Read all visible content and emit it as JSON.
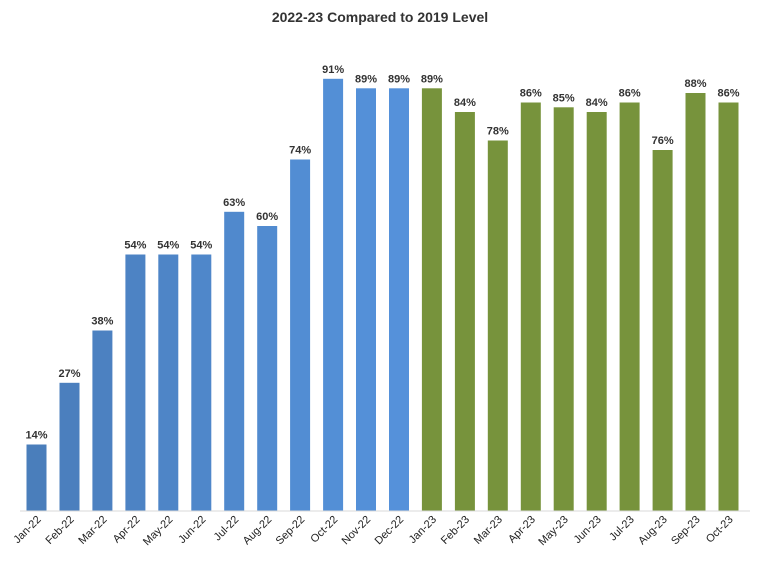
{
  "chart_data": {
    "type": "bar",
    "title": "2022-23 Compared to 2019 Level",
    "xlabel": "",
    "ylabel": "",
    "ylim": [
      0,
      100
    ],
    "grid": false,
    "legend": "none",
    "categories": [
      "Jan-22",
      "Feb-22",
      "Mar-22",
      "Apr-22",
      "May-22",
      "Jun-22",
      "Jul-22",
      "Aug-22",
      "Sep-22",
      "Oct-22",
      "Nov-22",
      "Dec-22",
      "Jan-23",
      "Feb-23",
      "Mar-23",
      "Apr-23",
      "May-23",
      "Jun-23",
      "Jul-23",
      "Aug-23",
      "Sep-23",
      "Oct-23"
    ],
    "values": [
      14,
      27,
      38,
      54,
      54,
      54,
      63,
      60,
      74,
      91,
      89,
      89,
      89,
      84,
      78,
      86,
      85,
      84,
      86,
      76,
      88,
      86
    ],
    "data_labels": [
      "14%",
      "27%",
      "38%",
      "54%",
      "54%",
      "54%",
      "63%",
      "60%",
      "74%",
      "91%",
      "89%",
      "89%",
      "89%",
      "84%",
      "78%",
      "86%",
      "85%",
      "84%",
      "86%",
      "76%",
      "88%",
      "86%"
    ],
    "bar_colors": [
      "#4a7ebb",
      "#4b7fbe",
      "#4c81c1",
      "#4d83c4",
      "#4e85c7",
      "#4f87ca",
      "#5089cd",
      "#518bd0",
      "#528dd3",
      "#538fd6",
      "#5490d8",
      "#5591da",
      "#77933c",
      "#77933c",
      "#77933c",
      "#77933c",
      "#77933c",
      "#77933c",
      "#77933c",
      "#77933c",
      "#77933c",
      "#77933c"
    ],
    "axis_color": "#d9d9d9"
  }
}
